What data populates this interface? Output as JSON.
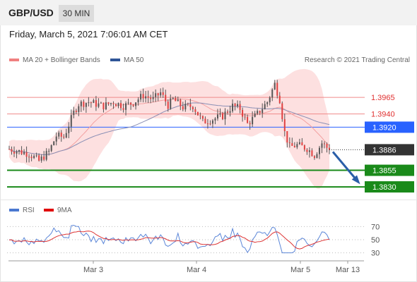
{
  "header": {
    "pair": "GBP/USD",
    "timeframe": "30 MIN"
  },
  "datetime": "Friday, March 5, 2021 7:06:01 AM CET",
  "legend": {
    "ma20": {
      "label": "MA 20 + Bollinger Bands",
      "color": "#f08080"
    },
    "ma50": {
      "label": "MA 50",
      "color": "#2f5597"
    },
    "rsi": {
      "label": "RSI",
      "color": "#4a78d0"
    },
    "rsi_ma": {
      "label": "9MA",
      "color": "#e00000"
    }
  },
  "credit": "Research © 2021 Trading Central",
  "chart_data": [
    {
      "type": "candlestick",
      "title": "GBP/USD",
      "x_ticks": [
        "Mar 3",
        "Mar 4",
        "Mar 5",
        "Mar 13"
      ],
      "ylim": [
        1.3812,
        1.4014
      ],
      "current_price": {
        "value": 1.3886,
        "label": "1.3886",
        "color": "#333333"
      },
      "levels": [
        {
          "label": "1.3965",
          "value": 1.3965,
          "color": "#f08a8a",
          "kind": "resistance"
        },
        {
          "label": "1.3940",
          "value": 1.394,
          "color": "#f08a8a",
          "kind": "resistance"
        },
        {
          "label": "1.3920",
          "value": 1.392,
          "color": "#2962ff",
          "kind": "pivot"
        },
        {
          "label": "1.3855",
          "value": 1.3855,
          "color": "#1a8a1a",
          "kind": "support"
        },
        {
          "label": "1.3830",
          "value": 1.383,
          "color": "#1a8a1a",
          "kind": "support"
        }
      ],
      "forecast_arrow": {
        "from": 1.3886,
        "to": 1.3834,
        "color": "#2a5ea8"
      }
    },
    {
      "type": "line",
      "title": "RSI",
      "y_ticks": [
        70,
        50,
        30
      ],
      "ylim": [
        20,
        80
      ],
      "series": [
        {
          "name": "RSI"
        },
        {
          "name": "9MA"
        }
      ]
    }
  ]
}
